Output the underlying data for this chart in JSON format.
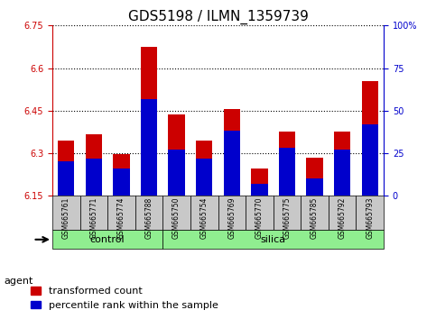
{
  "title": "GDS5198 / ILMN_1359739",
  "samples": [
    "GSM665761",
    "GSM665771",
    "GSM665774",
    "GSM665788",
    "GSM665750",
    "GSM665754",
    "GSM665769",
    "GSM665770",
    "GSM665775",
    "GSM665785",
    "GSM665792",
    "GSM665793"
  ],
  "groups": [
    "control",
    "control",
    "control",
    "control",
    "silica",
    "silica",
    "silica",
    "silica",
    "silica",
    "silica",
    "silica",
    "silica"
  ],
  "transformed_count": [
    6.345,
    6.365,
    6.295,
    6.675,
    6.435,
    6.345,
    6.455,
    6.245,
    6.375,
    6.285,
    6.375,
    6.555
  ],
  "percentile_rank": [
    0.2,
    0.22,
    0.16,
    0.57,
    0.27,
    0.22,
    0.38,
    0.07,
    0.28,
    0.1,
    0.27,
    0.42
  ],
  "ylim_left": [
    6.15,
    6.75
  ],
  "ylim_right": [
    0,
    100
  ],
  "yticks_left": [
    6.15,
    6.3,
    6.45,
    6.6,
    6.75
  ],
  "yticks_right": [
    0,
    25,
    50,
    75,
    100
  ],
  "ytick_labels_left": [
    "6.15",
    "6.3",
    "6.45",
    "6.6",
    "6.75"
  ],
  "ytick_labels_right": [
    "0",
    "25",
    "50",
    "75",
    "100%"
  ],
  "left_axis_color": "#cc0000",
  "right_axis_color": "#0000cc",
  "bar_color_red": "#cc0000",
  "bar_color_blue": "#0000cc",
  "control_color": "#90ee90",
  "silica_color": "#90ee90",
  "agent_label": "agent",
  "legend_transformed": "transformed count",
  "legend_percentile": "percentile rank within the sample",
  "bar_width": 0.6,
  "group_separator": 3.5,
  "background_plot": "#f0f0f0",
  "background_label": "#c8c8c8",
  "grid_color": "#000000",
  "title_fontsize": 11,
  "tick_fontsize": 7,
  "legend_fontsize": 8
}
